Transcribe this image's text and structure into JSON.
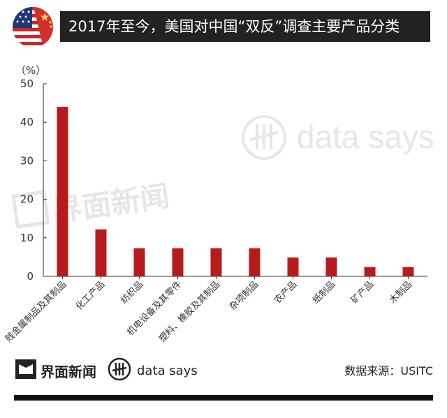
{
  "header": {
    "title": "2017年至今，美国对中国“双反”调查主要产品分类"
  },
  "chart_data": {
    "type": "bar",
    "title": "2017年至今，美国对中国“双反”调查主要产品分类",
    "ylabel": "（%）",
    "ylim": [
      0,
      50
    ],
    "yticks": [
      0,
      10,
      20,
      30,
      40,
      50
    ],
    "categories": [
      "贱金属制品及其制品",
      "化工产品",
      "纺织品",
      "机电设备及其零件",
      "塑料、橡胶及其制品",
      "杂项制品",
      "农产品",
      "纸制品",
      "矿产品",
      "木制品"
    ],
    "values": [
      44,
      12.2,
      7.3,
      7.3,
      7.3,
      7.3,
      4.9,
      4.9,
      2.4,
      2.4
    ],
    "bar_color": "#b71c1c",
    "grid": false
  },
  "footer": {
    "brand_name": "界面新闻",
    "data_says": "data says",
    "source": "数据来源：USITC"
  },
  "watermark": {
    "brand_name": "界面新闻",
    "data_says": "data says"
  }
}
